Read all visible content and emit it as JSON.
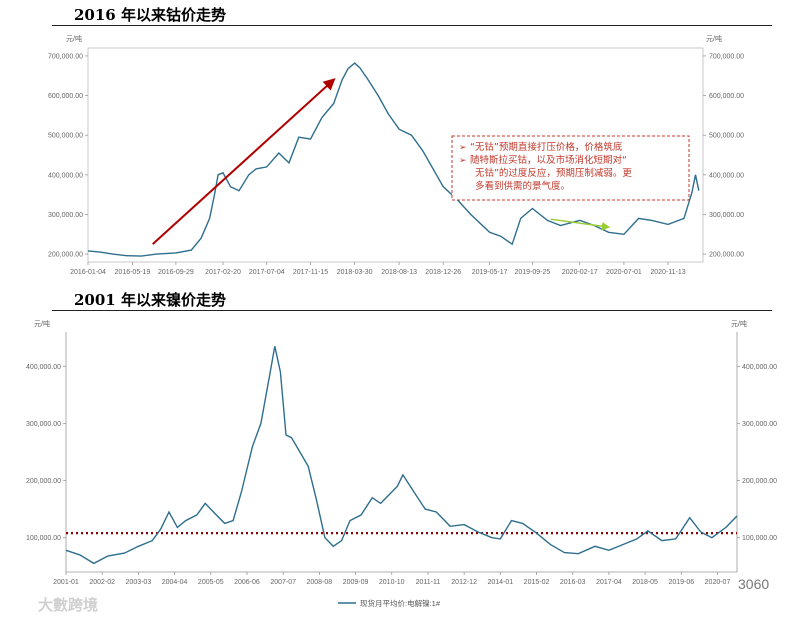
{
  "section1": {
    "title": "2016 年以来钴价走势"
  },
  "section2": {
    "title": "2001 年以来镍价走势"
  },
  "watermark": "大數跨境",
  "badge": "3060",
  "chart_data": [
    {
      "type": "line",
      "title": "2016 年以来钴价走势",
      "unit_left": "元/吨",
      "unit_right": "元/吨",
      "ylim": [
        180000,
        720000
      ],
      "yticks": [
        200000,
        300000,
        400000,
        500000,
        600000,
        700000
      ],
      "ytick_labels": [
        "200,000.00",
        "300,000.00",
        "400,000.00",
        "500,000.00",
        "600,000.00",
        "700,000.00"
      ],
      "x_labels": [
        "2016-01-04",
        "2016-05-19",
        "2016-09-29",
        "2017-02-20",
        "2017-07-04",
        "2017-11-15",
        "2018-03-30",
        "2018-08-13",
        "2018-12-26",
        "2019-05-17",
        "2019-09-25",
        "2020-02-17",
        "2020-07-01",
        "2020-11-13"
      ],
      "line_color": "#2e6e8e",
      "series": [
        {
          "values": [
            [
              "2016-01-04",
              208000
            ],
            [
              "2016-02-10",
              205000
            ],
            [
              "2016-03-20",
              200000
            ],
            [
              "2016-05-01",
              196000
            ],
            [
              "2016-06-15",
              195000
            ],
            [
              "2016-08-01",
              200000
            ],
            [
              "2016-09-29",
              203000
            ],
            [
              "2016-11-15",
              210000
            ],
            [
              "2016-12-15",
              240000
            ],
            [
              "2017-01-10",
              290000
            ],
            [
              "2017-01-25",
              350000
            ],
            [
              "2017-02-05",
              400000
            ],
            [
              "2017-02-20",
              405000
            ],
            [
              "2017-03-15",
              370000
            ],
            [
              "2017-04-10",
              360000
            ],
            [
              "2017-05-10",
              400000
            ],
            [
              "2017-06-01",
              415000
            ],
            [
              "2017-07-04",
              420000
            ],
            [
              "2017-08-10",
              455000
            ],
            [
              "2017-09-10",
              430000
            ],
            [
              "2017-10-10",
              495000
            ],
            [
              "2017-11-15",
              490000
            ],
            [
              "2017-12-20",
              545000
            ],
            [
              "2018-01-25",
              580000
            ],
            [
              "2018-02-20",
              640000
            ],
            [
              "2018-03-10",
              668000
            ],
            [
              "2018-03-30",
              682000
            ],
            [
              "2018-04-15",
              670000
            ],
            [
              "2018-05-10",
              640000
            ],
            [
              "2018-06-10",
              600000
            ],
            [
              "2018-07-10",
              555000
            ],
            [
              "2018-08-13",
              515000
            ],
            [
              "2018-09-20",
              500000
            ],
            [
              "2018-10-25",
              460000
            ],
            [
              "2018-12-26",
              370000
            ],
            [
              "2019-02-10",
              335000
            ],
            [
              "2019-03-20",
              300000
            ],
            [
              "2019-05-17",
              255000
            ],
            [
              "2019-06-20",
              245000
            ],
            [
              "2019-07-25",
              225000
            ],
            [
              "2019-08-20",
              290000
            ],
            [
              "2019-09-25",
              315000
            ],
            [
              "2019-11-10",
              285000
            ],
            [
              "2019-12-20",
              272000
            ],
            [
              "2020-02-17",
              285000
            ],
            [
              "2020-04-01",
              272000
            ],
            [
              "2020-05-15",
              255000
            ],
            [
              "2020-07-01",
              250000
            ],
            [
              "2020-08-15",
              290000
            ],
            [
              "2020-09-25",
              285000
            ],
            [
              "2020-11-13",
              275000
            ],
            [
              "2021-01-01",
              290000
            ],
            [
              "2021-01-25",
              355000
            ],
            [
              "2021-02-05",
              400000
            ],
            [
              "2021-02-15",
              360000
            ]
          ]
        }
      ],
      "annotation": {
        "lines": [
          "“无钴”预期直接打压价格，价格筑底",
          "随特斯拉买钴，以及市场消化短期对“",
          "无钴”的过度反应，预期压制减弱。更",
          "多看到供需的景气度。"
        ],
        "bullet": "➢",
        "border_color": "#c0392b",
        "text_color": "#c0392b"
      },
      "trend_arrows": [
        {
          "from": [
            "2016-07-20",
            225000
          ],
          "to": [
            "2018-01-25",
            640000
          ],
          "color": "#b00000"
        },
        {
          "from": [
            "2019-11-20",
            288000
          ],
          "to": [
            "2020-05-15",
            268000
          ],
          "color": "#9acd32"
        }
      ]
    },
    {
      "type": "line",
      "title": "2001 年以来镍价走势",
      "unit_left": "元/吨",
      "unit_right": "元/吨",
      "ylim": [
        40000,
        460000
      ],
      "yticks": [
        100000,
        200000,
        300000,
        400000
      ],
      "ytick_labels": [
        "100,000.00",
        "200,000.00",
        "300,000.00",
        "400,000.00"
      ],
      "x_labels": [
        "2001-01",
        "2002-02",
        "2003-03",
        "2004-04",
        "2005-05",
        "2006-06",
        "2007-07",
        "2008-08",
        "2009-09",
        "2010-10",
        "2011-11",
        "2012-12",
        "2014-01",
        "2015-02",
        "2016-03",
        "2017-04",
        "2018-05",
        "2019-06",
        "2020-07"
      ],
      "line_color": "#2e6e8e",
      "reference_line": {
        "value": 108000,
        "color": "#8b0000"
      },
      "series": [
        {
          "name": "现货月平均价:电解镍:1#",
          "values": [
            [
              "2001-01",
              78000
            ],
            [
              "2001-06",
              70000
            ],
            [
              "2001-11",
              55000
            ],
            [
              "2002-04",
              68000
            ],
            [
              "2002-10",
              73000
            ],
            [
              "2003-03",
              85000
            ],
            [
              "2003-08",
              95000
            ],
            [
              "2003-11",
              115000
            ],
            [
              "2004-02",
              145000
            ],
            [
              "2004-05",
              118000
            ],
            [
              "2004-08",
              130000
            ],
            [
              "2004-12",
              140000
            ],
            [
              "2005-03",
              160000
            ],
            [
              "2005-07",
              140000
            ],
            [
              "2005-10",
              125000
            ],
            [
              "2006-01",
              130000
            ],
            [
              "2006-04",
              180000
            ],
            [
              "2006-08",
              260000
            ],
            [
              "2006-11",
              300000
            ],
            [
              "2007-02",
              380000
            ],
            [
              "2007-04",
              435000
            ],
            [
              "2007-06",
              390000
            ],
            [
              "2007-08",
              280000
            ],
            [
              "2007-10",
              275000
            ],
            [
              "2008-01",
              250000
            ],
            [
              "2008-04",
              225000
            ],
            [
              "2008-07",
              165000
            ],
            [
              "2008-10",
              100000
            ],
            [
              "2009-01",
              85000
            ],
            [
              "2009-04",
              95000
            ],
            [
              "2009-07",
              130000
            ],
            [
              "2009-11",
              140000
            ],
            [
              "2010-03",
              170000
            ],
            [
              "2010-06",
              160000
            ],
            [
              "2010-09",
              175000
            ],
            [
              "2010-12",
              190000
            ],
            [
              "2011-02",
              210000
            ],
            [
              "2011-06",
              180000
            ],
            [
              "2011-10",
              150000
            ],
            [
              "2012-02",
              145000
            ],
            [
              "2012-07",
              120000
            ],
            [
              "2012-12",
              123000
            ],
            [
              "2013-05",
              110000
            ],
            [
              "2013-10",
              100000
            ],
            [
              "2014-01",
              98000
            ],
            [
              "2014-05",
              130000
            ],
            [
              "2014-09",
              125000
            ],
            [
              "2015-02",
              108000
            ],
            [
              "2015-07",
              88000
            ],
            [
              "2015-12",
              74000
            ],
            [
              "2016-05",
              72000
            ],
            [
              "2016-11",
              85000
            ],
            [
              "2017-04",
              78000
            ],
            [
              "2017-09",
              88000
            ],
            [
              "2018-02",
              98000
            ],
            [
              "2018-06",
              112000
            ],
            [
              "2018-11",
              95000
            ],
            [
              "2019-04",
              98000
            ],
            [
              "2019-09",
              135000
            ],
            [
              "2020-01",
              110000
            ],
            [
              "2020-05",
              100000
            ],
            [
              "2020-10",
              118000
            ],
            [
              "2021-02",
              138000
            ]
          ]
        }
      ]
    }
  ]
}
